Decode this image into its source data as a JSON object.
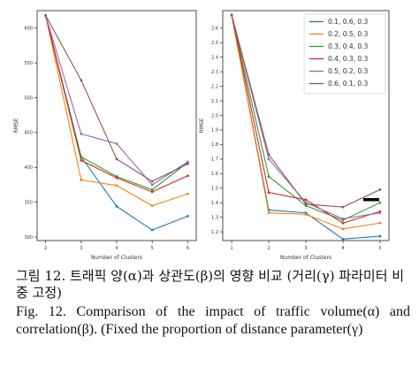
{
  "caption": {
    "korean": "그림 12. 트래픽 양(α)과 상관도(β)의 영향 비교 (거리(γ) 파라미터 비중 고정)",
    "english": "Fig. 12. Comparison of the impact of traffic volume(α) and correlation(β). (Fixed the proportion of distance parameter(γ)"
  },
  "series_colors": [
    "#1f77b4",
    "#ff7f0e",
    "#2ca02c",
    "#d62728",
    "#9467bd",
    "#8c564b"
  ],
  "chart_data": [
    {
      "type": "line",
      "title": "",
      "xlabel": "Number of Clusters",
      "ylabel": "RMSE",
      "x": [
        2,
        3,
        4,
        5,
        6
      ],
      "x_tick_labels": [
        "2",
        "3",
        "4",
        "5",
        "6"
      ],
      "y_tick_labels": [
        "300",
        "350",
        "400",
        "450",
        "500",
        "550",
        "600"
      ],
      "ylim": [
        295,
        625
      ],
      "grid": false,
      "series": [
        {
          "name": "0.1, 0.6, 0.3",
          "values": [
            618,
            415,
            344,
            310,
            330
          ]
        },
        {
          "name": "0.2, 0.5, 0.3",
          "values": [
            618,
            382,
            374,
            345,
            362
          ]
        },
        {
          "name": "0.3, 0.4, 0.3",
          "values": [
            618,
            415,
            387,
            368,
            407
          ]
        },
        {
          "name": "0.4, 0.3, 0.3",
          "values": [
            618,
            410,
            385,
            365,
            388
          ]
        },
        {
          "name": "0.5, 0.2, 0.3",
          "values": [
            618,
            448,
            434,
            375,
            408
          ]
        },
        {
          "name": "0.6, 0.1, 0.3",
          "values": [
            618,
            525,
            412,
            380,
            405
          ]
        }
      ]
    },
    {
      "type": "line",
      "title": "",
      "xlabel": "Number of Clusters",
      "ylabel": "RMSE",
      "x": [
        1,
        2,
        3,
        4,
        5
      ],
      "x_tick_labels": [
        "1",
        "2",
        "3",
        "4",
        "5"
      ],
      "y_tick_labels": [
        "1.2",
        "1.3",
        "1.4",
        "1.5",
        "1.6",
        "1.7",
        "1.8",
        "1.9",
        "2.0",
        "2.1",
        "2.2",
        "2.3",
        "2.4",
        "2.5",
        "2.6"
      ],
      "ylim": [
        1.14,
        2.72
      ],
      "grid": false,
      "legend": {
        "location": "top-right",
        "entries": [
          "0.1, 0.6, 0.3",
          "0.2, 0.5, 0.3",
          "0.3, 0.4, 0.3",
          "0.4, 0.3, 0.3",
          "0.5, 0.2, 0.3",
          "0.6, 0.1, 0.3"
        ]
      },
      "series": [
        {
          "name": "0.1, 0.6, 0.3",
          "values": [
            2.69,
            1.35,
            1.33,
            1.15,
            1.17
          ]
        },
        {
          "name": "0.2, 0.5, 0.3",
          "values": [
            2.69,
            1.33,
            1.32,
            1.22,
            1.26
          ]
        },
        {
          "name": "0.3, 0.4, 0.3",
          "values": [
            2.69,
            1.58,
            1.38,
            1.28,
            1.4
          ]
        },
        {
          "name": "0.4, 0.3, 0.3",
          "values": [
            2.69,
            1.47,
            1.42,
            1.26,
            1.34
          ]
        },
        {
          "name": "0.5, 0.2, 0.3",
          "values": [
            2.69,
            1.7,
            1.4,
            1.29,
            1.33
          ]
        },
        {
          "name": "0.6, 0.1, 0.3",
          "values": [
            2.69,
            1.73,
            1.39,
            1.37,
            1.49
          ]
        }
      ]
    }
  ]
}
